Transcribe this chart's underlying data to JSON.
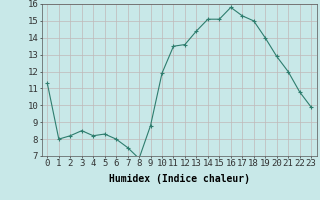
{
  "x": [
    0,
    1,
    2,
    3,
    4,
    5,
    6,
    7,
    8,
    9,
    10,
    11,
    12,
    13,
    14,
    15,
    16,
    17,
    18,
    19,
    20,
    21,
    22,
    23
  ],
  "y": [
    11.3,
    8.0,
    8.2,
    8.5,
    8.2,
    8.3,
    8.0,
    7.5,
    6.85,
    8.8,
    11.9,
    13.5,
    13.6,
    14.4,
    15.1,
    15.1,
    15.8,
    15.3,
    15.0,
    14.0,
    12.9,
    12.0,
    10.8,
    9.9
  ],
  "xlabel": "Humidex (Indice chaleur)",
  "ylim": [
    7,
    16
  ],
  "xlim": [
    -0.5,
    23.5
  ],
  "yticks": [
    7,
    8,
    9,
    10,
    11,
    12,
    13,
    14,
    15,
    16
  ],
  "xticks": [
    0,
    1,
    2,
    3,
    4,
    5,
    6,
    7,
    8,
    9,
    10,
    11,
    12,
    13,
    14,
    15,
    16,
    17,
    18,
    19,
    20,
    21,
    22,
    23
  ],
  "line_color": "#2e7d6e",
  "marker_color": "#2e7d6e",
  "bg_color": "#c8e8e8",
  "grid_color": "#c0b8b8",
  "axis_bg": "#c8e8e8",
  "label_fontsize": 7,
  "tick_fontsize": 6.5
}
